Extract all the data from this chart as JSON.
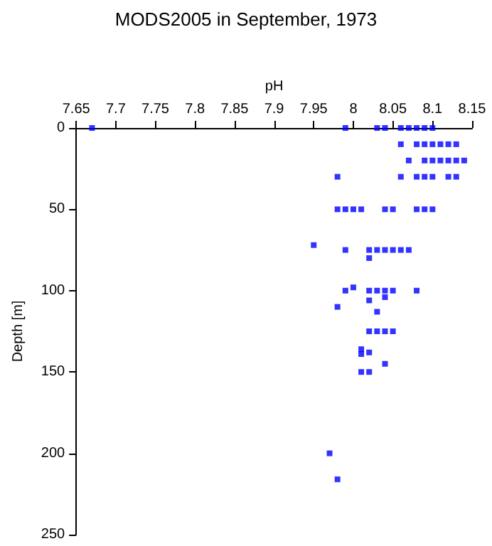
{
  "chart_data": {
    "type": "scatter",
    "title": "MODS2005 in September, 1973",
    "xlabel": "pH",
    "ylabel": "Depth [m]",
    "marker": "square",
    "grid": false,
    "xlim": [
      7.65,
      8.15
    ],
    "xticks": [
      7.65,
      7.7,
      7.75,
      7.8,
      7.85,
      7.9,
      7.95,
      8,
      8.05,
      8.1,
      8.15
    ],
    "ylim": [
      250,
      0
    ],
    "yticks": [
      0,
      50,
      100,
      150,
      200,
      250
    ],
    "series": [
      {
        "color": "#0000ff",
        "x": [
          7.67,
          7.99,
          8.03,
          8.04,
          8.06,
          8.07,
          8.08,
          8.09,
          8.1,
          8.06,
          8.08,
          8.09,
          8.1,
          8.11,
          8.12,
          8.13,
          8.07,
          8.09,
          8.1,
          8.11,
          8.12,
          8.13,
          8.14,
          7.98,
          8.06,
          8.08,
          8.09,
          8.1,
          8.12,
          8.13,
          7.98,
          7.99,
          8,
          8.01,
          8.04,
          8.05,
          8.08,
          8.09,
          8.1,
          7.95,
          7.99,
          8.02,
          8.03,
          8.04,
          8.05,
          8.06,
          8.07,
          8.02,
          8,
          7.99,
          8.02,
          8.03,
          8.04,
          8.05,
          8.08,
          8.04,
          8.02,
          7.98,
          8.03,
          8.02,
          8.03,
          8.04,
          8.05,
          8.01,
          8.01,
          8.02,
          8.04,
          8.01,
          8.02,
          7.97,
          7.98
        ],
        "values": [
          0,
          0,
          0,
          0,
          0,
          0,
          0,
          0,
          0,
          10,
          10,
          10,
          10,
          10,
          10,
          10,
          20,
          20,
          20,
          20,
          20,
          20,
          20,
          30,
          30,
          30,
          30,
          30,
          30,
          30,
          50,
          50,
          50,
          50,
          50,
          50,
          50,
          50,
          50,
          72,
          75,
          75,
          75,
          75,
          75,
          75,
          75,
          80,
          98,
          100,
          100,
          100,
          100,
          100,
          100,
          104,
          106,
          110,
          113,
          125,
          125,
          125,
          125,
          136,
          139,
          138,
          145,
          150,
          150,
          200,
          216
        ]
      }
    ]
  }
}
